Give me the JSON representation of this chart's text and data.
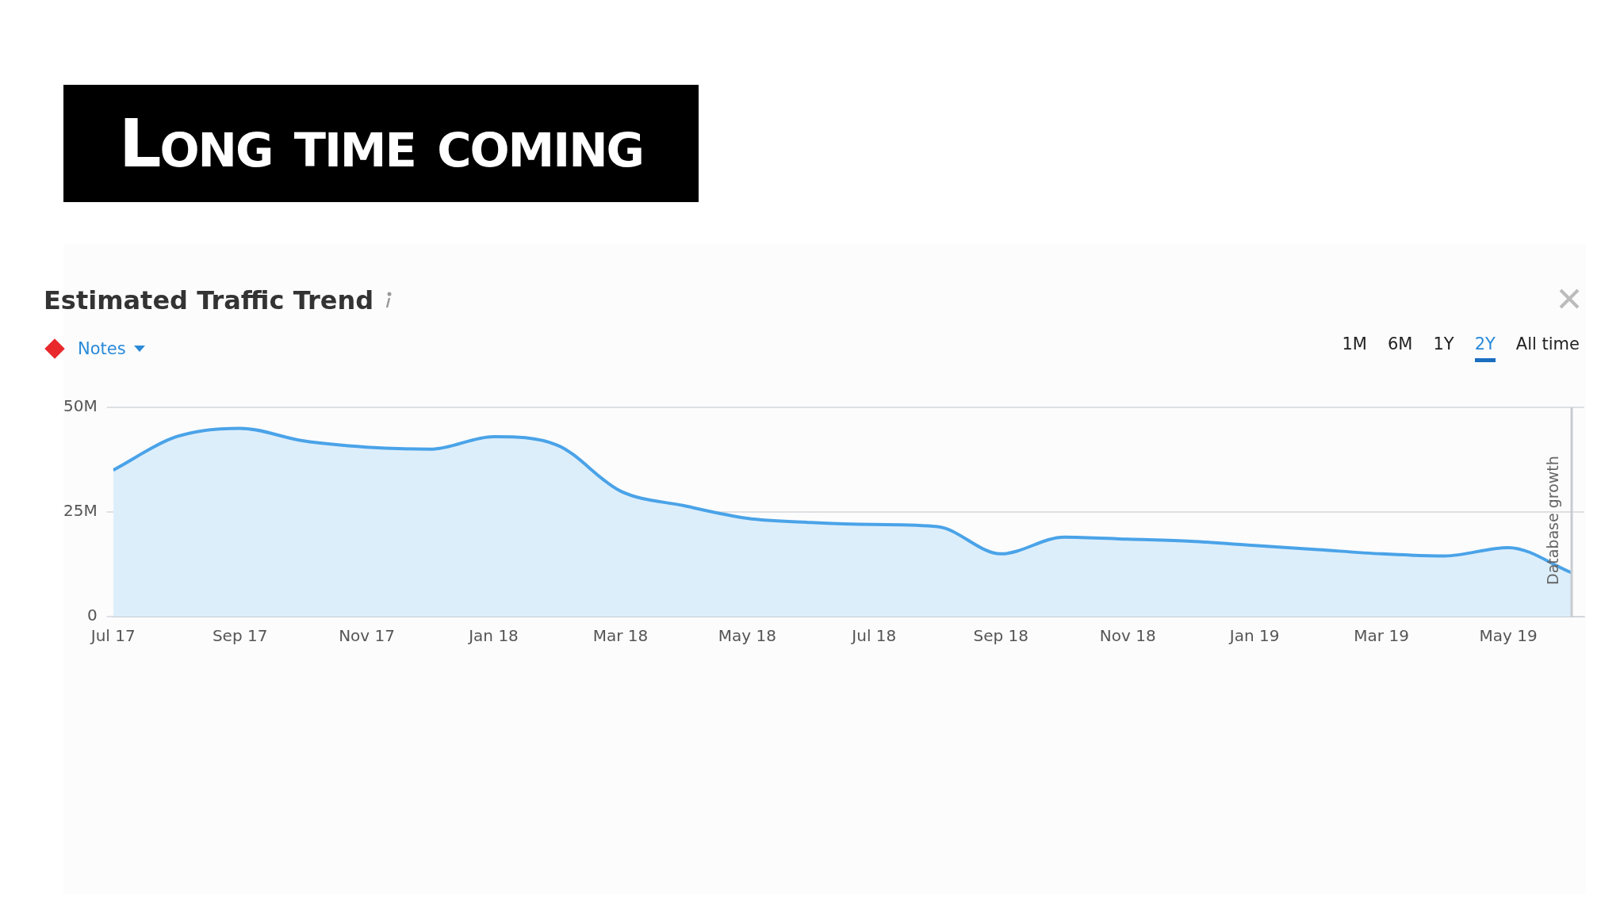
{
  "chart_data": {
    "type": "area",
    "title": "Long time coming",
    "subtitle": "Estimated Traffic Trend",
    "x": [
      "2017-07",
      "2017-08",
      "2017-09",
      "2017-10",
      "2017-11",
      "2017-12",
      "2018-01",
      "2018-02",
      "2018-03",
      "2018-04",
      "2018-05",
      "2018-06",
      "2018-07",
      "2018-08",
      "2018-09",
      "2018-10",
      "2018-11",
      "2018-12",
      "2019-01",
      "2019-02",
      "2019-03",
      "2019-04",
      "2019-05",
      "2019-06"
    ],
    "series": [
      {
        "color": "#4aa3e8",
        "values": [
          35000000,
          43000000,
          45000000,
          42000000,
          40500000,
          40000000,
          43000000,
          41000000,
          30000000,
          26500000,
          23500000,
          22500000,
          22000000,
          21500000,
          15000000,
          19000000,
          18500000,
          18000000,
          17000000,
          16000000,
          15000000,
          14500000,
          16500000,
          10500000
        ]
      }
    ],
    "xlim": [
      "2017-07",
      "2019-06"
    ],
    "xticks": [
      {
        "value": "2017-07",
        "label": "Jul 17"
      },
      {
        "value": "2017-09",
        "label": "Sep 17"
      },
      {
        "value": "2017-11",
        "label": "Nov 17"
      },
      {
        "value": "2018-01",
        "label": "Jan 18"
      },
      {
        "value": "2018-03",
        "label": "Mar 18"
      },
      {
        "value": "2018-05",
        "label": "May 18"
      },
      {
        "value": "2018-07",
        "label": "Jul 18"
      },
      {
        "value": "2018-09",
        "label": "Sep 18"
      },
      {
        "value": "2018-11",
        "label": "Nov 18"
      },
      {
        "value": "2019-01",
        "label": "Jan 19"
      },
      {
        "value": "2019-03",
        "label": "Mar 19"
      },
      {
        "value": "2019-05",
        "label": "May 19"
      }
    ],
    "ylim": [
      0,
      50000000
    ],
    "yticks": [
      {
        "value": 0,
        "label": "0"
      },
      {
        "value": 25000000,
        "label": "25M"
      },
      {
        "value": 50000000,
        "label": "50M"
      }
    ],
    "grid": "y",
    "legend": false,
    "marker": "none",
    "ref_lines": [
      {
        "axis": "x",
        "value": "2019-06",
        "label": "Database growth",
        "color": "#c8ccd0"
      }
    ],
    "annotations": [
      "Notes",
      "1M",
      "6M",
      "1Y",
      "2Y",
      "All time"
    ]
  }
}
